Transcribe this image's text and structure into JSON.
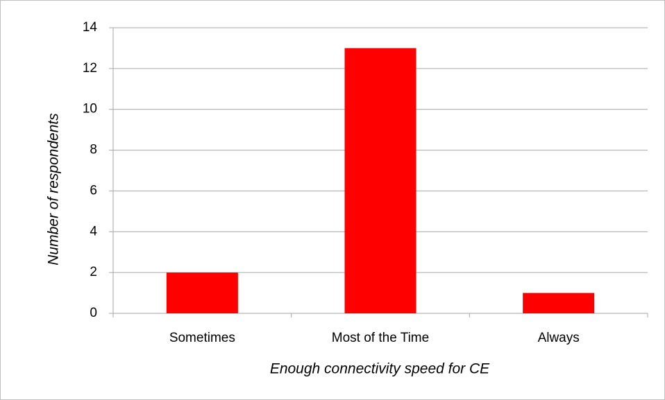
{
  "chart_data": {
    "type": "bar",
    "x_label": "Enough connectivity speed for CE",
    "y_label": "Number of respondents",
    "categories": [
      "Sometimes",
      "Most of the Time",
      "Always"
    ],
    "values": [
      2,
      13,
      1
    ],
    "color": "#ff0000",
    "ylim": [
      0,
      14
    ],
    "yticks": [
      0,
      2,
      4,
      6,
      8,
      10,
      12,
      14
    ],
    "grid": true
  }
}
